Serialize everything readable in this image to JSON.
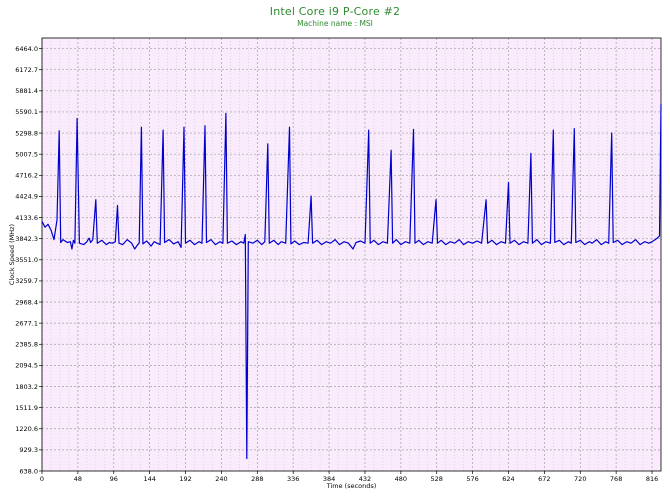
{
  "chart_data": {
    "type": "line",
    "title": "Intel Core i9 P-Core #2",
    "subtitle": "Machine name : MSI",
    "xlabel": "Time (seconds)",
    "ylabel": "Clock Speed (MHz)",
    "xlim": [
      0,
      828
    ],
    "ylim": [
      638.0,
      6610.0
    ],
    "x_ticks": [
      "0",
      "48",
      "96",
      "144",
      "192",
      "240",
      "288",
      "336",
      "384",
      "432",
      "480",
      "528",
      "576",
      "624",
      "672",
      "720",
      "768",
      "816"
    ],
    "y_ticks": [
      "638.0",
      "929.3",
      "1220.6",
      "1511.9",
      "1803.2",
      "2094.5",
      "2385.8",
      "2677.1",
      "2968.4",
      "3259.7",
      "3551.0",
      "3842.3",
      "4133.6",
      "4424.9",
      "4716.2",
      "5007.5",
      "5298.8",
      "5590.1",
      "5881.4",
      "6172.7",
      "6464.0"
    ],
    "grid": true,
    "series": [
      {
        "values": [
          [
            0,
            4080
          ],
          [
            4,
            4000
          ],
          [
            8,
            4040
          ],
          [
            12,
            3960
          ],
          [
            16,
            3830
          ],
          [
            20,
            4100
          ],
          [
            23,
            5330
          ],
          [
            25,
            3790
          ],
          [
            28,
            3830
          ],
          [
            34,
            3790
          ],
          [
            38,
            3800
          ],
          [
            40,
            3700
          ],
          [
            42,
            3820
          ],
          [
            44,
            3780
          ],
          [
            47,
            5500
          ],
          [
            50,
            3780
          ],
          [
            56,
            3760
          ],
          [
            60,
            3800
          ],
          [
            63,
            3850
          ],
          [
            65,
            3790
          ],
          [
            68,
            3830
          ],
          [
            72,
            4380
          ],
          [
            74,
            3780
          ],
          [
            80,
            3820
          ],
          [
            86,
            3760
          ],
          [
            90,
            3790
          ],
          [
            94,
            3780
          ],
          [
            98,
            3800
          ],
          [
            101,
            4300
          ],
          [
            103,
            3780
          ],
          [
            108,
            3760
          ],
          [
            114,
            3830
          ],
          [
            120,
            3780
          ],
          [
            124,
            3700
          ],
          [
            128,
            3760
          ],
          [
            130,
            3780
          ],
          [
            133,
            5380
          ],
          [
            135,
            3770
          ],
          [
            140,
            3810
          ],
          [
            146,
            3740
          ],
          [
            150,
            3800
          ],
          [
            154,
            3780
          ],
          [
            158,
            3760
          ],
          [
            162,
            5340
          ],
          [
            164,
            3790
          ],
          [
            170,
            3830
          ],
          [
            176,
            3770
          ],
          [
            182,
            3800
          ],
          [
            186,
            3720
          ],
          [
            190,
            5380
          ],
          [
            192,
            3780
          ],
          [
            198,
            3820
          ],
          [
            204,
            3760
          ],
          [
            210,
            3800
          ],
          [
            214,
            3780
          ],
          [
            218,
            5400
          ],
          [
            220,
            3790
          ],
          [
            226,
            3830
          ],
          [
            232,
            3760
          ],
          [
            238,
            3800
          ],
          [
            242,
            3780
          ],
          [
            246,
            5570
          ],
          [
            248,
            3780
          ],
          [
            254,
            3810
          ],
          [
            260,
            3760
          ],
          [
            266,
            3800
          ],
          [
            270,
            3780
          ],
          [
            272,
            3900
          ],
          [
            274,
            810
          ],
          [
            276,
            3800
          ],
          [
            282,
            3780
          ],
          [
            288,
            3820
          ],
          [
            294,
            3760
          ],
          [
            298,
            3800
          ],
          [
            302,
            5150
          ],
          [
            304,
            3780
          ],
          [
            310,
            3820
          ],
          [
            316,
            3760
          ],
          [
            320,
            3800
          ],
          [
            326,
            3780
          ],
          [
            331,
            5380
          ],
          [
            333,
            3770
          ],
          [
            338,
            3810
          ],
          [
            344,
            3760
          ],
          [
            350,
            3790
          ],
          [
            356,
            3780
          ],
          [
            360,
            4430
          ],
          [
            362,
            3780
          ],
          [
            368,
            3820
          ],
          [
            374,
            3760
          ],
          [
            380,
            3800
          ],
          [
            386,
            3780
          ],
          [
            392,
            3830
          ],
          [
            398,
            3760
          ],
          [
            404,
            3800
          ],
          [
            410,
            3780
          ],
          [
            416,
            3700
          ],
          [
            420,
            3790
          ],
          [
            426,
            3810
          ],
          [
            432,
            3780
          ],
          [
            437,
            5340
          ],
          [
            439,
            3780
          ],
          [
            444,
            3820
          ],
          [
            450,
            3760
          ],
          [
            456,
            3800
          ],
          [
            462,
            3780
          ],
          [
            467,
            5060
          ],
          [
            469,
            3780
          ],
          [
            474,
            3830
          ],
          [
            480,
            3760
          ],
          [
            486,
            3800
          ],
          [
            492,
            3780
          ],
          [
            497,
            5350
          ],
          [
            499,
            3780
          ],
          [
            504,
            3820
          ],
          [
            510,
            3760
          ],
          [
            516,
            3800
          ],
          [
            522,
            3780
          ],
          [
            527,
            4380
          ],
          [
            529,
            3780
          ],
          [
            534,
            3820
          ],
          [
            540,
            3760
          ],
          [
            546,
            3800
          ],
          [
            552,
            3780
          ],
          [
            558,
            3830
          ],
          [
            564,
            3760
          ],
          [
            570,
            3800
          ],
          [
            576,
            3780
          ],
          [
            582,
            3810
          ],
          [
            588,
            3780
          ],
          [
            594,
            4380
          ],
          [
            596,
            3780
          ],
          [
            602,
            3820
          ],
          [
            608,
            3760
          ],
          [
            614,
            3800
          ],
          [
            620,
            3780
          ],
          [
            624,
            4620
          ],
          [
            626,
            3780
          ],
          [
            632,
            3820
          ],
          [
            638,
            3760
          ],
          [
            644,
            3800
          ],
          [
            650,
            3780
          ],
          [
            654,
            5020
          ],
          [
            656,
            3780
          ],
          [
            662,
            3830
          ],
          [
            668,
            3760
          ],
          [
            674,
            3800
          ],
          [
            680,
            3780
          ],
          [
            684,
            5340
          ],
          [
            686,
            3790
          ],
          [
            692,
            3820
          ],
          [
            698,
            3760
          ],
          [
            704,
            3800
          ],
          [
            708,
            3780
          ],
          [
            712,
            5360
          ],
          [
            714,
            3790
          ],
          [
            720,
            3820
          ],
          [
            726,
            3760
          ],
          [
            732,
            3800
          ],
          [
            736,
            3780
          ],
          [
            742,
            3830
          ],
          [
            748,
            3760
          ],
          [
            754,
            3800
          ],
          [
            758,
            3780
          ],
          [
            762,
            5300
          ],
          [
            764,
            3790
          ],
          [
            770,
            3820
          ],
          [
            776,
            3760
          ],
          [
            782,
            3800
          ],
          [
            788,
            3780
          ],
          [
            794,
            3830
          ],
          [
            800,
            3760
          ],
          [
            806,
            3800
          ],
          [
            812,
            3780
          ],
          [
            816,
            3800
          ],
          [
            822,
            3840
          ],
          [
            826,
            3880
          ],
          [
            828,
            5700
          ]
        ]
      }
    ]
  }
}
